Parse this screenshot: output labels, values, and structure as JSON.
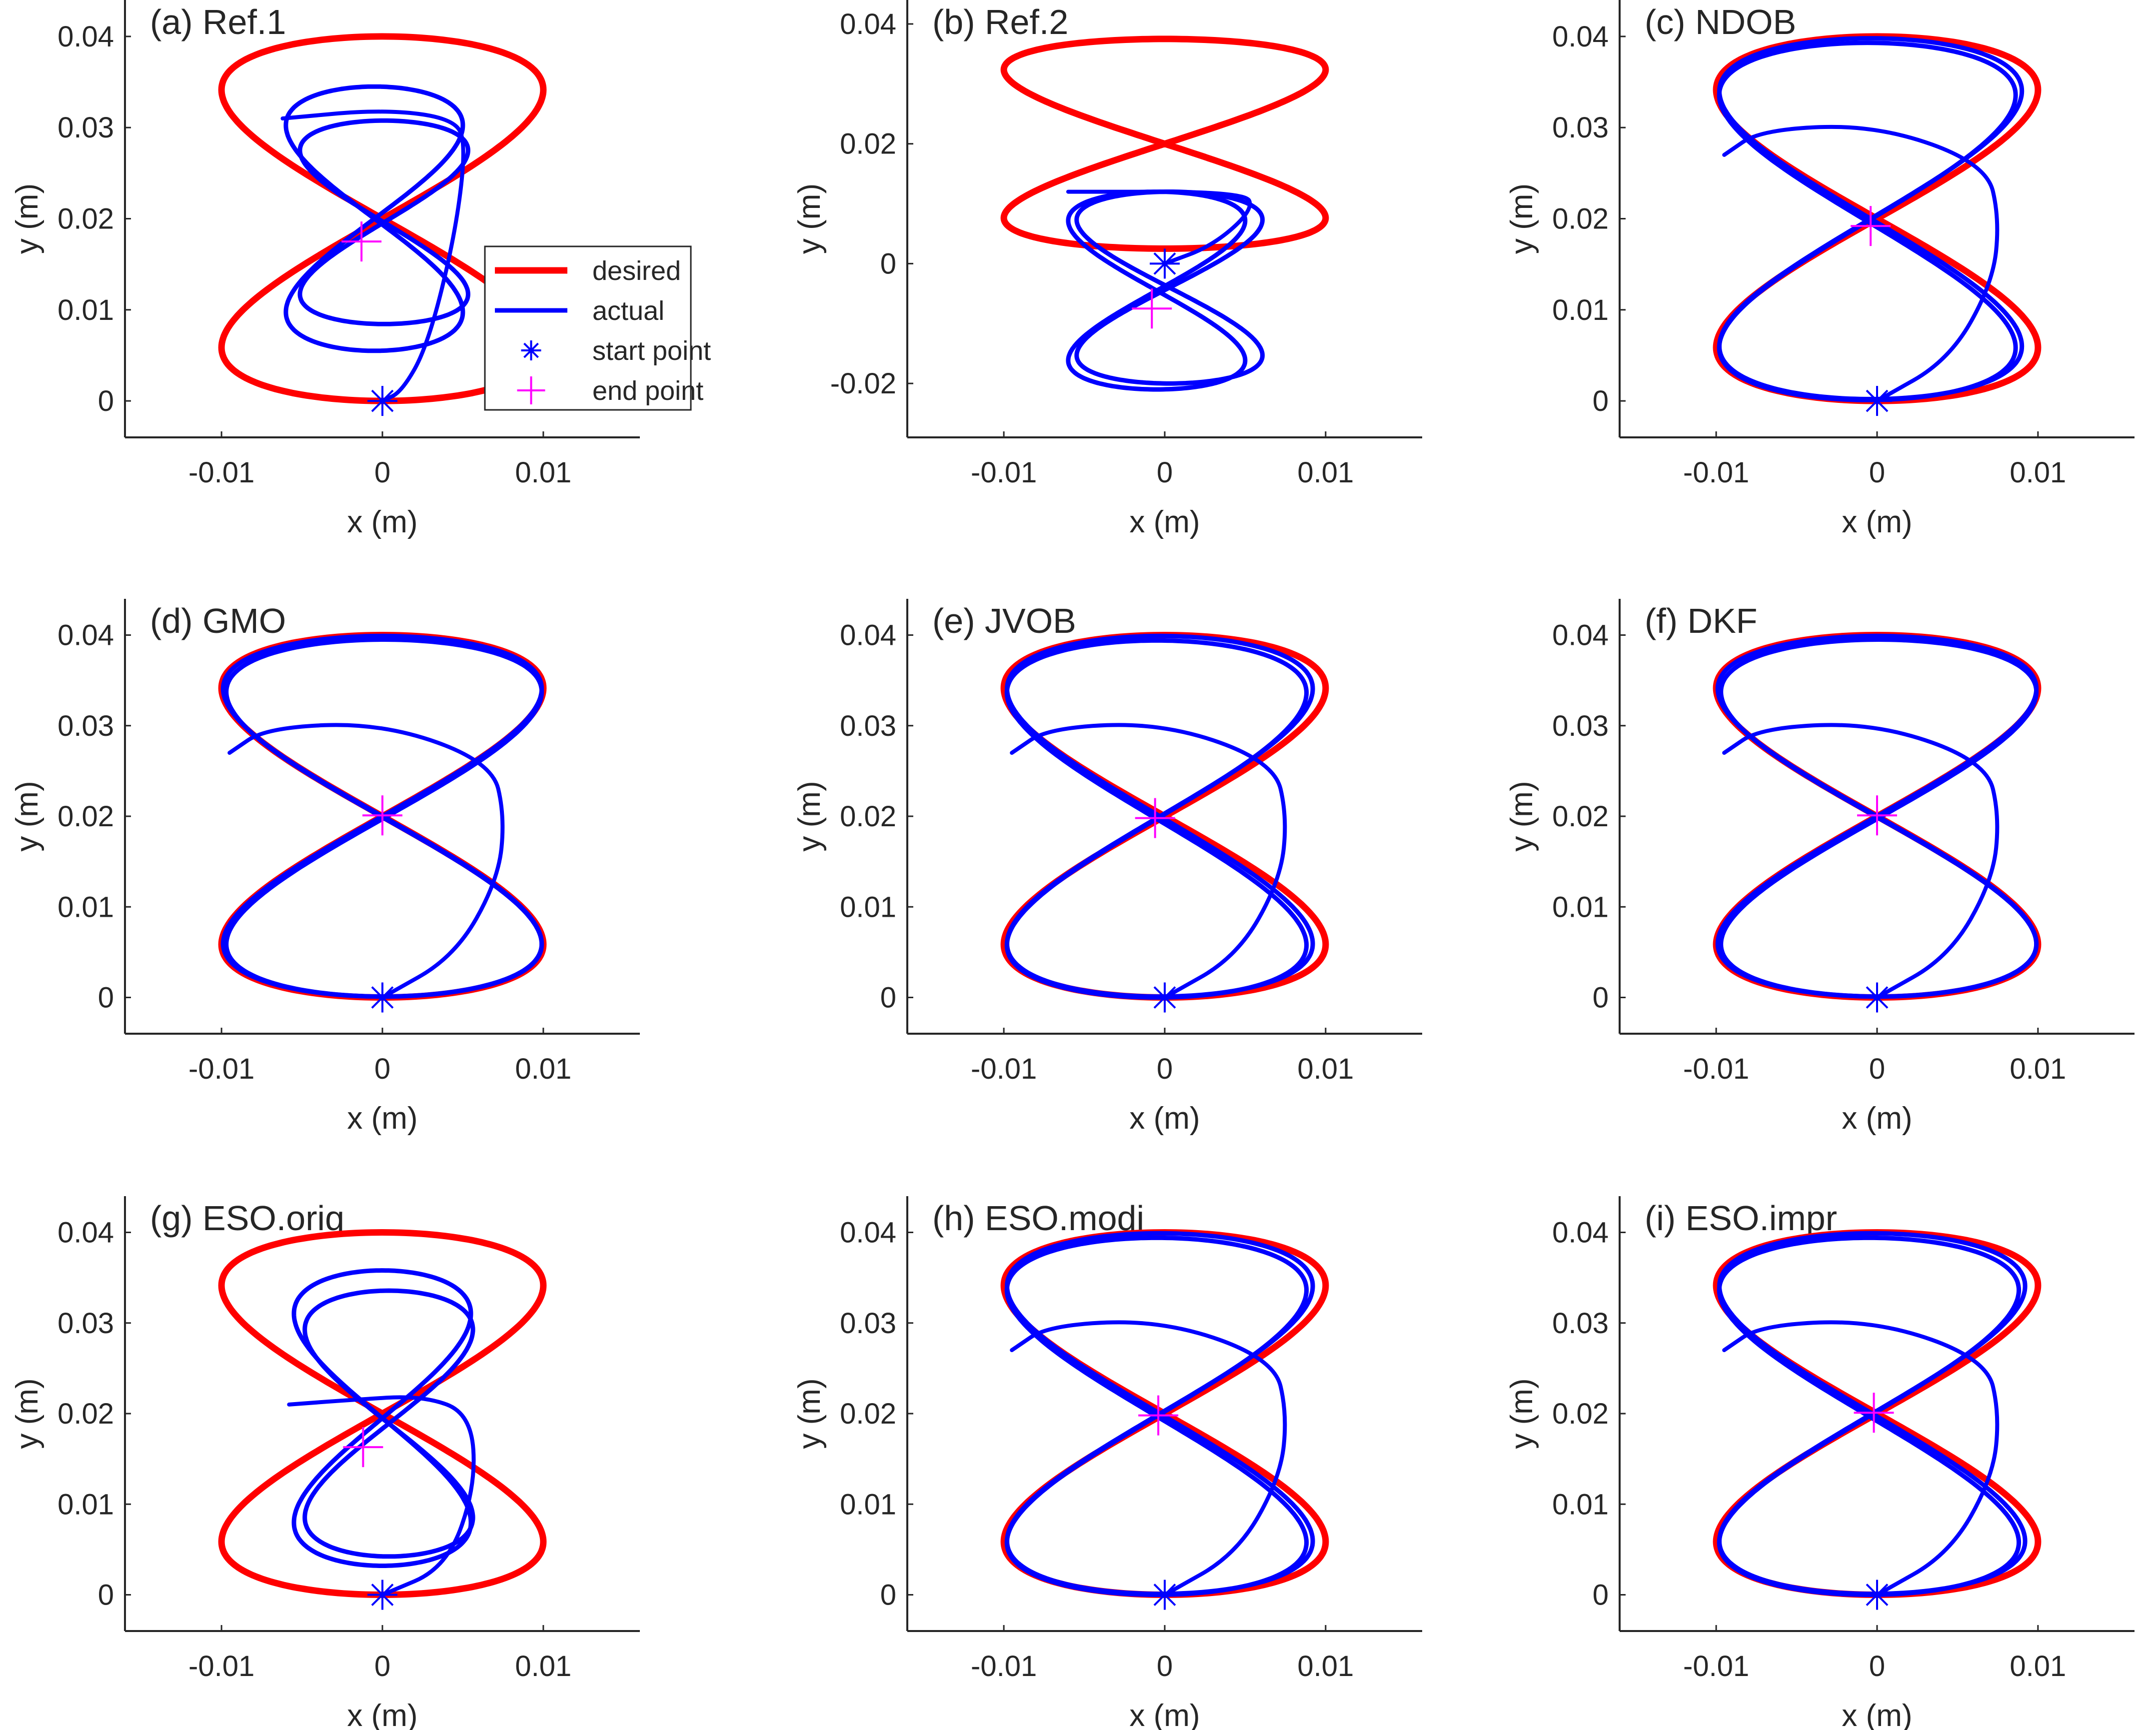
{
  "chart_data": [
    {
      "panel": "a",
      "type": "line",
      "title": "(a) Ref.1",
      "xlabel": "x (m)",
      "ylabel": "y (m)",
      "xlim": [
        -0.016,
        0.016
      ],
      "ylim": [
        -0.004,
        0.044
      ],
      "xticks": [
        "-0.01",
        "0",
        "0.01"
      ],
      "yticks": [
        "0",
        "0.01",
        "0.02",
        "0.03",
        "0.04"
      ],
      "series": [
        {
          "name": "desired",
          "color": "#ff0000",
          "shape": "figure-eight",
          "center": [
            0.0,
            0.02
          ],
          "ax": 0.01,
          "ay": 0.02
        },
        {
          "name": "actual",
          "color": "#0000ff",
          "shape": "figure-eight",
          "center": [
            -0.0005,
            0.02
          ],
          "ax": 0.0055,
          "ay": 0.0145,
          "turns": [
            {
              "dx": 0,
              "dy": 0,
              "sx": 1.0,
              "sy": 1.0
            },
            {
              "dx": 0.0006,
              "dy": -0.0004,
              "sx": 0.95,
              "sy": 0.77
            }
          ],
          "transient": [
            [
              0.0,
              0.0
            ],
            [
              0.0012,
              0.001
            ],
            [
              0.0028,
              0.006
            ],
            [
              0.0045,
              0.018
            ],
            [
              0.0052,
              0.028
            ],
            [
              0.0045,
              0.031
            ],
            [
              0.0,
              0.032
            ],
            [
              -0.0062,
              0.031
            ]
          ]
        }
      ],
      "markers": {
        "start": [
          0.0,
          0.0
        ],
        "end": [
          -0.0013,
          0.0175
        ]
      },
      "legend": {
        "position": "right-middle",
        "entries": [
          "desired",
          "actual",
          "start point",
          "end point"
        ]
      }
    },
    {
      "panel": "b",
      "type": "line",
      "title": "(b) Ref.2",
      "xlabel": "x (m)",
      "ylabel": "y (m)",
      "xlim": [
        -0.016,
        0.016
      ],
      "ylim": [
        -0.029,
        0.044
      ],
      "xticks": [
        "-0.01",
        "0",
        "0.01"
      ],
      "yticks": [
        "-0.02",
        "0",
        "0.02",
        "0.04"
      ],
      "series": [
        {
          "name": "desired",
          "color": "#ff0000",
          "shape": "figure-eight",
          "center": [
            0.0,
            0.02
          ],
          "ax": 0.01,
          "ay": 0.0175
        },
        {
          "name": "actual",
          "color": "#0000ff",
          "shape": "figure-eight",
          "center": [
            -0.0005,
            -0.0045
          ],
          "ax": 0.0055,
          "ay": 0.0165,
          "turns": [
            {
              "dx": 0,
              "dy": 0,
              "sx": 1.0,
              "sy": 1.0
            },
            {
              "dx": 0.0008,
              "dy": 0.0005,
              "sx": 1.05,
              "sy": 0.97
            }
          ],
          "transient": [
            [
              0.0,
              0.0
            ],
            [
              0.003,
              0.003
            ],
            [
              0.0055,
              0.009
            ],
            [
              0.005,
              0.012
            ],
            [
              -0.006,
              0.012
            ]
          ]
        }
      ],
      "markers": {
        "start": [
          0.0,
          0.0
        ],
        "end": [
          -0.0008,
          -0.0075
        ]
      }
    },
    {
      "panel": "c",
      "type": "line",
      "title": "(c) NDOB",
      "xlabel": "x (m)",
      "ylabel": "y (m)",
      "xlim": [
        -0.016,
        0.016
      ],
      "ylim": [
        -0.004,
        0.044
      ],
      "xticks": [
        "-0.01",
        "0",
        "0.01"
      ],
      "yticks": [
        "0",
        "0.01",
        "0.02",
        "0.03",
        "0.04"
      ],
      "series": [
        {
          "name": "desired",
          "color": "#ff0000",
          "shape": "figure-eight",
          "center": [
            0.0,
            0.02
          ],
          "ax": 0.01,
          "ay": 0.02
        },
        {
          "name": "actual",
          "color": "#0000ff",
          "shape": "figure-eight",
          "center": [
            -0.0004,
            0.02
          ],
          "ax": 0.0094,
          "ay": 0.0198,
          "turns": [
            {
              "dx": 0,
              "dy": 0,
              "sx": 1.0,
              "sy": 1.0
            },
            {
              "dx": -0.0002,
              "dy": -0.0003,
              "sx": 0.98,
              "sy": 0.99
            }
          ],
          "transient": [
            [
              0.0,
              0.0
            ],
            [
              0.0045,
              0.0045
            ],
            [
              0.0072,
              0.013
            ],
            [
              0.0076,
              0.02
            ],
            [
              0.0068,
              0.026
            ],
            [
              0.0,
              0.0303
            ],
            [
              -0.0072,
              0.0298
            ],
            [
              -0.0095,
              0.027
            ]
          ]
        }
      ],
      "markers": {
        "start": [
          0.0,
          0.0
        ],
        "end": [
          -0.0004,
          0.0192
        ]
      }
    },
    {
      "panel": "d",
      "type": "line",
      "title": "(d) GMO",
      "xlabel": "x (m)",
      "ylabel": "y (m)",
      "xlim": [
        -0.016,
        0.016
      ],
      "ylim": [
        -0.004,
        0.044
      ],
      "xticks": [
        "-0.01",
        "0",
        "0.01"
      ],
      "yticks": [
        "0",
        "0.01",
        "0.02",
        "0.03",
        "0.04"
      ],
      "series": [
        {
          "name": "desired",
          "color": "#ff0000",
          "shape": "figure-eight",
          "center": [
            0.0,
            0.02
          ],
          "ax": 0.01,
          "ay": 0.02
        },
        {
          "name": "actual",
          "color": "#0000ff",
          "shape": "figure-eight",
          "center": [
            0.0,
            0.02
          ],
          "ax": 0.0099,
          "ay": 0.0199,
          "turns": [
            {
              "dx": 0,
              "dy": 0,
              "sx": 1.0,
              "sy": 1.0
            },
            {
              "dx": 0.0001,
              "dy": -0.0002,
              "sx": 0.99,
              "sy": 0.99
            }
          ],
          "transient": [
            [
              0.0,
              0.0
            ],
            [
              0.0045,
              0.0045
            ],
            [
              0.0072,
              0.013
            ],
            [
              0.0076,
              0.02
            ],
            [
              0.0068,
              0.026
            ],
            [
              0.0,
              0.0303
            ],
            [
              -0.0072,
              0.0298
            ],
            [
              -0.0095,
              0.027
            ]
          ]
        }
      ],
      "markers": {
        "start": [
          0.0,
          0.0
        ],
        "end": [
          0.0,
          0.0201
        ]
      }
    },
    {
      "panel": "e",
      "type": "line",
      "title": "(e) JVOB",
      "xlabel": "x (m)",
      "ylabel": "y (m)",
      "xlim": [
        -0.016,
        0.016
      ],
      "ylim": [
        -0.004,
        0.044
      ],
      "xticks": [
        "-0.01",
        "0",
        "0.01"
      ],
      "yticks": [
        "0",
        "0.01",
        "0.02",
        "0.03",
        "0.04"
      ],
      "series": [
        {
          "name": "desired",
          "color": "#ff0000",
          "shape": "figure-eight",
          "center": [
            0.0,
            0.02
          ],
          "ax": 0.01,
          "ay": 0.02
        },
        {
          "name": "actual",
          "color": "#0000ff",
          "shape": "figure-eight",
          "center": [
            -0.0003,
            0.02
          ],
          "ax": 0.0095,
          "ay": 0.0199,
          "turns": [
            {
              "dx": 0,
              "dy": 0,
              "sx": 1.0,
              "sy": 1.0
            },
            {
              "dx": -0.0002,
              "dy": -0.0003,
              "sx": 0.98,
              "sy": 0.99
            }
          ],
          "transient": [
            [
              0.0,
              0.0
            ],
            [
              0.0045,
              0.0045
            ],
            [
              0.0072,
              0.013
            ],
            [
              0.0076,
              0.02
            ],
            [
              0.0068,
              0.026
            ],
            [
              0.0,
              0.0303
            ],
            [
              -0.0072,
              0.0298
            ],
            [
              -0.0095,
              0.027
            ]
          ]
        }
      ],
      "markers": {
        "start": [
          0.0,
          0.0
        ],
        "end": [
          -0.0006,
          0.0198
        ]
      }
    },
    {
      "panel": "f",
      "type": "line",
      "title": "(f) DKF",
      "xlabel": "x (m)",
      "ylabel": "y (m)",
      "xlim": [
        -0.016,
        0.016
      ],
      "ylim": [
        -0.004,
        0.044
      ],
      "xticks": [
        "-0.01",
        "0",
        "0.01"
      ],
      "yticks": [
        "0",
        "0.01",
        "0.02",
        "0.03",
        "0.04"
      ],
      "series": [
        {
          "name": "desired",
          "color": "#ff0000",
          "shape": "figure-eight",
          "center": [
            0.0,
            0.02
          ],
          "ax": 0.01,
          "ay": 0.02
        },
        {
          "name": "actual",
          "color": "#0000ff",
          "shape": "figure-eight",
          "center": [
            0.0,
            0.02
          ],
          "ax": 0.0099,
          "ay": 0.0199,
          "turns": [
            {
              "dx": 0,
              "dy": 0,
              "sx": 1.0,
              "sy": 1.0
            },
            {
              "dx": 0.0001,
              "dy": -0.0002,
              "sx": 0.99,
              "sy": 0.99
            }
          ],
          "transient": [
            [
              0.0,
              0.0
            ],
            [
              0.0045,
              0.0045
            ],
            [
              0.0072,
              0.013
            ],
            [
              0.0076,
              0.02
            ],
            [
              0.0068,
              0.026
            ],
            [
              0.0,
              0.0303
            ],
            [
              -0.0072,
              0.0298
            ],
            [
              -0.0095,
              0.027
            ]
          ]
        }
      ],
      "markers": {
        "start": [
          0.0,
          0.0
        ],
        "end": [
          0.0,
          0.0201
        ]
      }
    },
    {
      "panel": "g",
      "type": "line",
      "title": "(g) ESO.orig",
      "xlabel": "x (m)",
      "ylabel": "y (m)",
      "xlim": [
        -0.016,
        0.016
      ],
      "ylim": [
        -0.004,
        0.044
      ],
      "xticks": [
        "-0.01",
        "0",
        "0.01"
      ],
      "yticks": [
        "0",
        "0.01",
        "0.02",
        "0.03",
        "0.04"
      ],
      "series": [
        {
          "name": "desired",
          "color": "#ff0000",
          "shape": "figure-eight",
          "center": [
            0.0,
            0.02
          ],
          "ax": 0.01,
          "ay": 0.02
        },
        {
          "name": "actual",
          "color": "#0000ff",
          "shape": "figure-eight",
          "center": [
            0.0,
            0.0195
          ],
          "ax": 0.0055,
          "ay": 0.0163,
          "turns": [
            {
              "dx": 0,
              "dy": 0,
              "sx": 1.0,
              "sy": 1.0
            },
            {
              "dx": 0.0004,
              "dy": -0.0006,
              "sx": 0.95,
              "sy": 0.9
            }
          ],
          "transient": [
            [
              0.0,
              0.0
            ],
            [
              0.004,
              0.003
            ],
            [
              0.0058,
              0.012
            ],
            [
              0.0055,
              0.02
            ],
            [
              0.0025,
              0.022
            ],
            [
              -0.002,
              0.0215
            ],
            [
              -0.0058,
              0.021
            ]
          ]
        }
      ],
      "markers": {
        "start": [
          0.0,
          0.0
        ],
        "end": [
          -0.0012,
          0.0163
        ]
      }
    },
    {
      "panel": "h",
      "type": "line",
      "title": "(h) ESO.modi",
      "xlabel": "x (m)",
      "ylabel": "y (m)",
      "xlim": [
        -0.016,
        0.016
      ],
      "ylim": [
        -0.004,
        0.044
      ],
      "xticks": [
        "-0.01",
        "0",
        "0.01"
      ],
      "yticks": [
        "0",
        "0.01",
        "0.02",
        "0.03",
        "0.04"
      ],
      "series": [
        {
          "name": "desired",
          "color": "#ff0000",
          "shape": "figure-eight",
          "center": [
            0.0,
            0.02
          ],
          "ax": 0.01,
          "ay": 0.02
        },
        {
          "name": "actual",
          "color": "#0000ff",
          "shape": "figure-eight",
          "center": [
            -0.0003,
            0.02
          ],
          "ax": 0.0095,
          "ay": 0.0199,
          "turns": [
            {
              "dx": 0,
              "dy": 0,
              "sx": 1.0,
              "sy": 1.0
            },
            {
              "dx": -0.0002,
              "dy": -0.0003,
              "sx": 0.98,
              "sy": 0.99
            }
          ],
          "transient": [
            [
              0.0,
              0.0
            ],
            [
              0.0045,
              0.0045
            ],
            [
              0.0072,
              0.013
            ],
            [
              0.0076,
              0.02
            ],
            [
              0.0068,
              0.026
            ],
            [
              0.0,
              0.0303
            ],
            [
              -0.0072,
              0.0298
            ],
            [
              -0.0095,
              0.027
            ]
          ]
        }
      ],
      "markers": {
        "start": [
          0.0,
          0.0
        ],
        "end": [
          -0.0004,
          0.0198
        ]
      }
    },
    {
      "panel": "i",
      "type": "line",
      "title": "(i) ESO.impr",
      "xlabel": "x (m)",
      "ylabel": "y (m)",
      "xlim": [
        -0.016,
        0.016
      ],
      "ylim": [
        -0.004,
        0.044
      ],
      "xticks": [
        "-0.01",
        "0",
        "0.01"
      ],
      "yticks": [
        "0",
        "0.01",
        "0.02",
        "0.03",
        "0.04"
      ],
      "series": [
        {
          "name": "desired",
          "color": "#ff0000",
          "shape": "figure-eight",
          "center": [
            0.0,
            0.02
          ],
          "ax": 0.01,
          "ay": 0.02
        },
        {
          "name": "actual",
          "color": "#0000ff",
          "shape": "figure-eight",
          "center": [
            -0.0003,
            0.02
          ],
          "ax": 0.0095,
          "ay": 0.0199,
          "turns": [
            {
              "dx": 0,
              "dy": 0,
              "sx": 1.0,
              "sy": 1.0
            },
            {
              "dx": -0.0002,
              "dy": -0.0003,
              "sx": 0.98,
              "sy": 0.99
            }
          ],
          "transient": [
            [
              0.0,
              0.0
            ],
            [
              0.0045,
              0.0045
            ],
            [
              0.0072,
              0.013
            ],
            [
              0.0076,
              0.02
            ],
            [
              0.0068,
              0.026
            ],
            [
              0.0,
              0.0303
            ],
            [
              -0.0072,
              0.0298
            ],
            [
              -0.0095,
              0.027
            ]
          ]
        }
      ],
      "markers": {
        "start": [
          0.0,
          0.0
        ],
        "end": [
          -0.0002,
          0.0201
        ]
      }
    }
  ],
  "colors": {
    "desired": "#ff0000",
    "actual": "#0000ff",
    "start_marker": "#0000ff",
    "end_marker": "#ff00ff",
    "axis": "#262626"
  },
  "legend": {
    "desired": "desired",
    "actual": "actual",
    "start": "start point",
    "end": "end point"
  }
}
